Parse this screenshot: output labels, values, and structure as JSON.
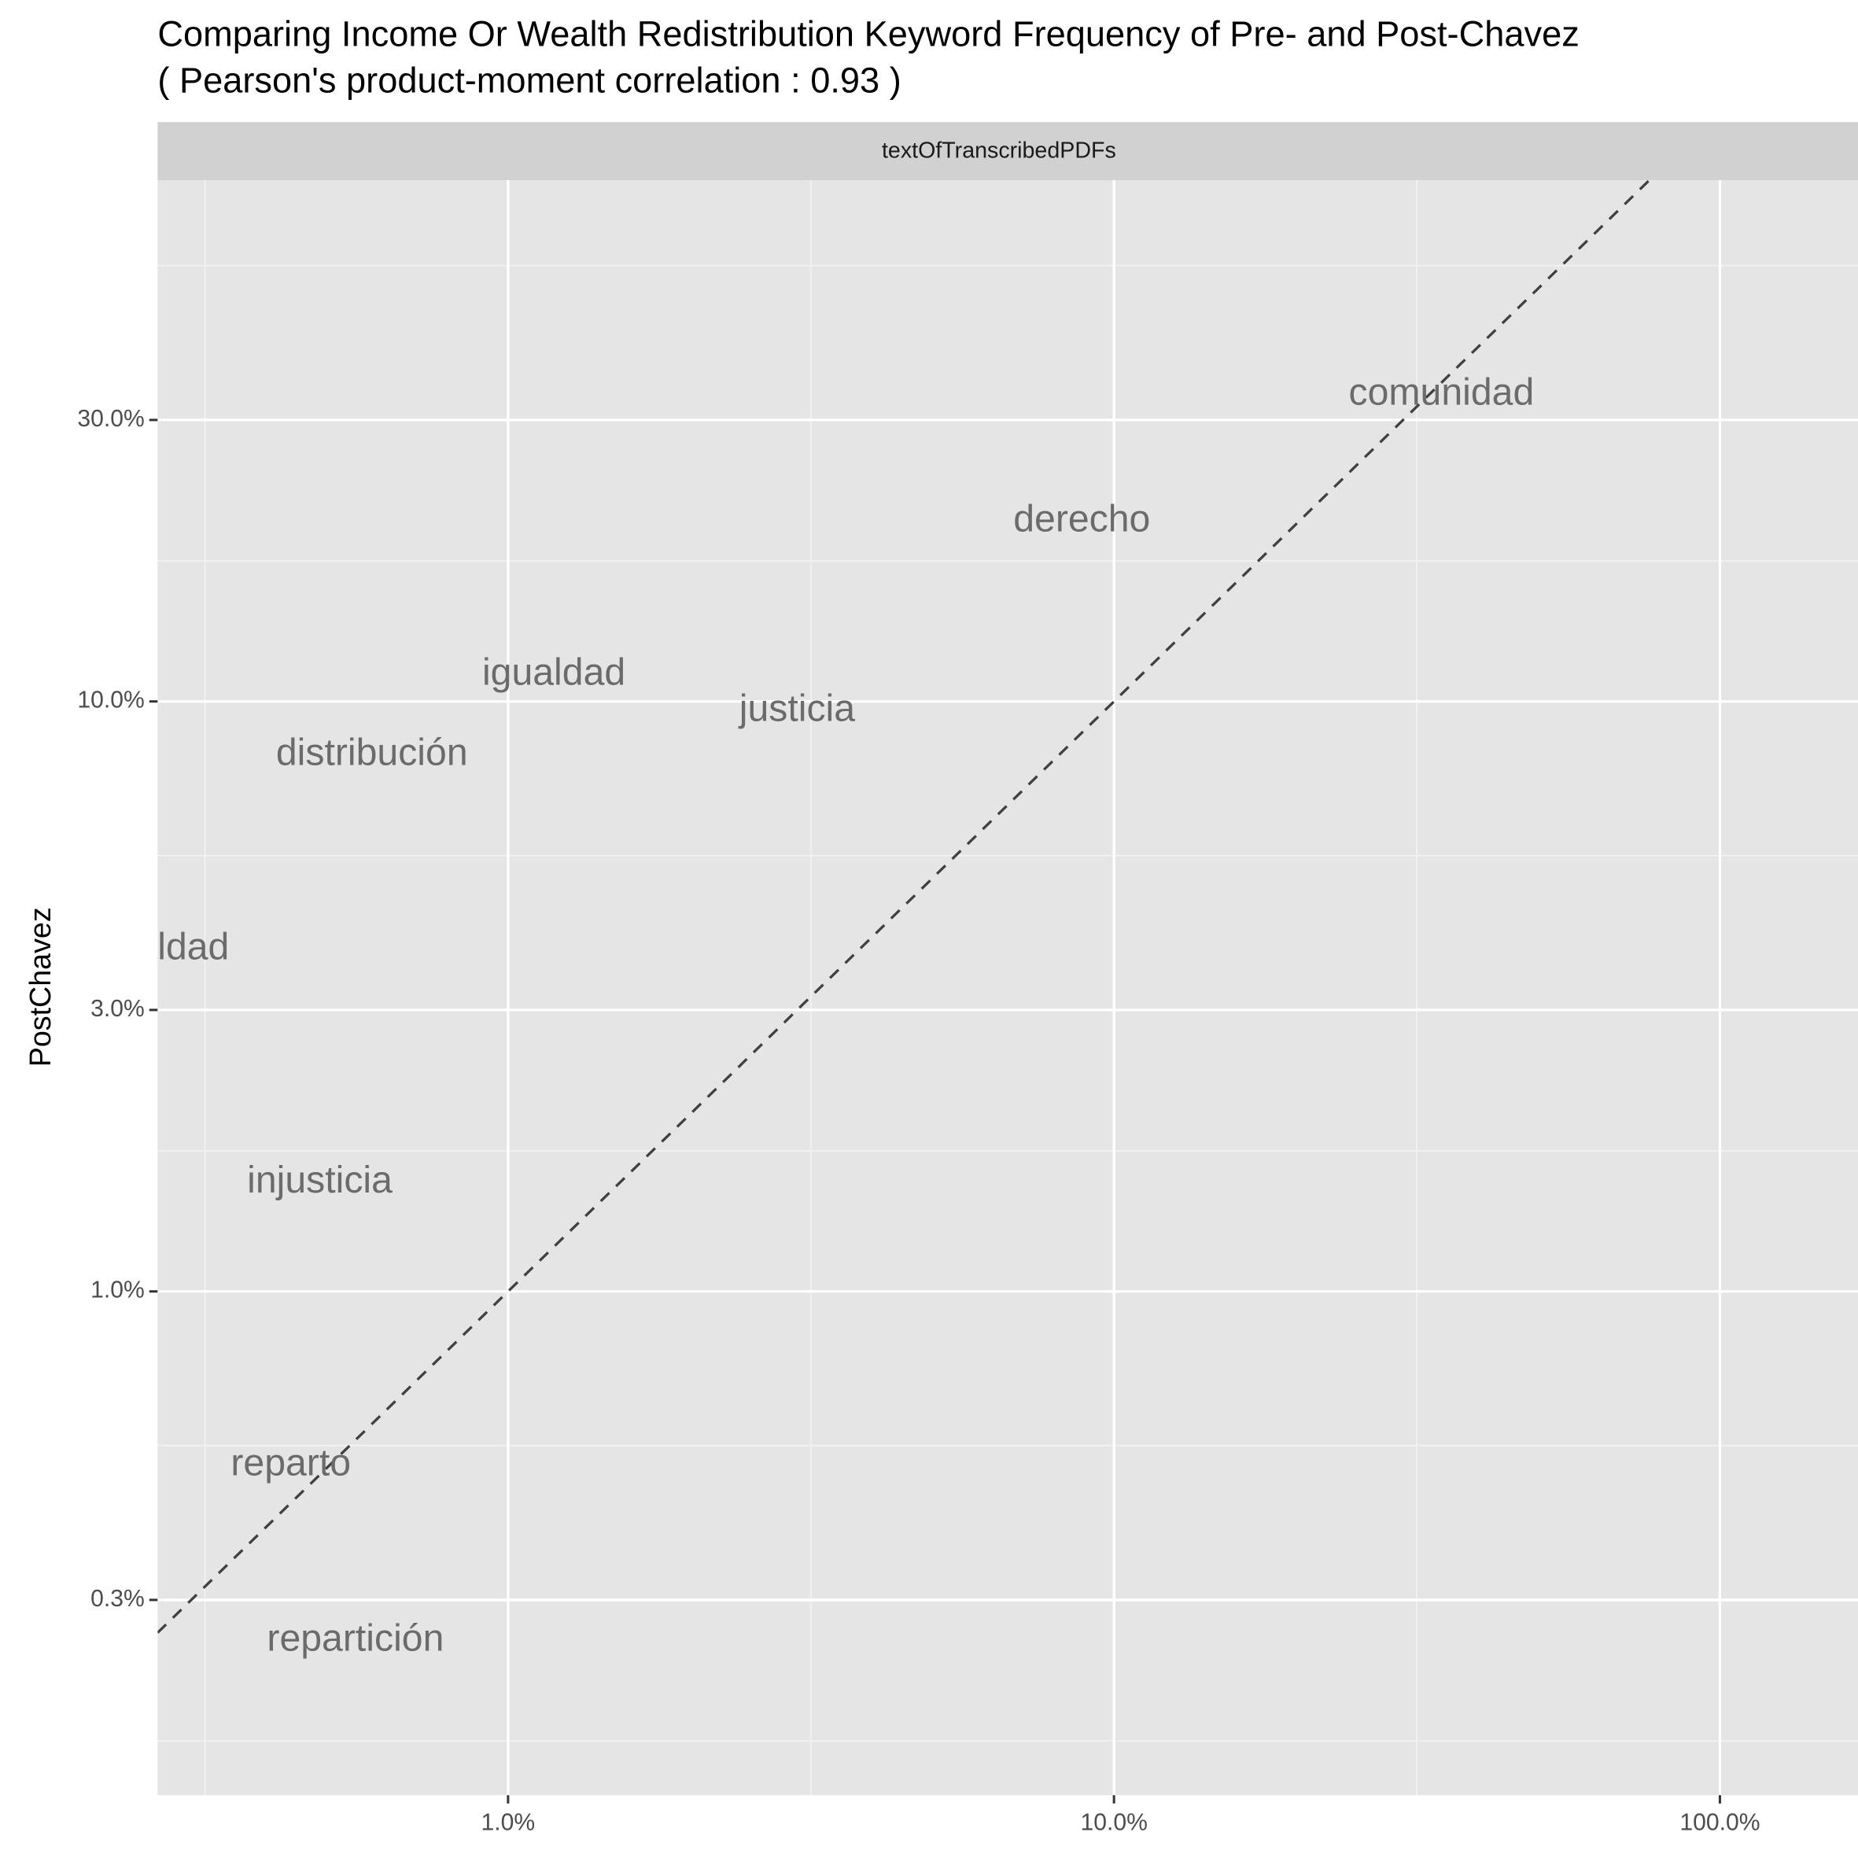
{
  "chart_data": {
    "type": "text-scatter",
    "title": "Comparing Income Or Wealth Redistribution Keyword Frequency of Pre- and Post-Chavez",
    "subtitle": "( Pearson's product-moment correlation :  0.93 )",
    "facet": "textOfTranscribedPDFs",
    "y_label": "PostChavez",
    "log_x": true,
    "log_y": true,
    "grid": true,
    "labels": [
      "comunidad",
      "derecho",
      "igualdad",
      "justicia",
      "distribución",
      "desigualdad",
      "injusticia",
      "reparto",
      "repartición"
    ],
    "x": [
      34.7,
      8.85,
      1.19,
      3.0,
      0.596,
      0.235,
      0.489,
      0.438,
      0.56
    ],
    "values": [
      33.1,
      20.2,
      11.1,
      9.64,
      8.12,
      3.8,
      1.53,
      0.507,
      0.256
    ],
    "color": "#6b6b6b",
    "reference_line_color": "#404040",
    "xlim": [
      0.264,
      169
    ],
    "ylim": [
      0.14,
      76.5
    ],
    "xticks": [
      {
        "value": 1,
        "label": "1.0%"
      },
      {
        "value": 10,
        "label": "10.0%"
      },
      {
        "value": 100,
        "label": "100.0%"
      }
    ],
    "yticks": [
      {
        "value": 0.3,
        "label": "0.3%"
      },
      {
        "value": 1,
        "label": "1.0%"
      },
      {
        "value": 3,
        "label": "3.0%"
      },
      {
        "value": 10,
        "label": "10.0%"
      },
      {
        "value": 30,
        "label": "30.0%"
      }
    ],
    "xminor": [
      0.316,
      3.16,
      31.6
    ],
    "yminor": [
      0.173,
      0.548,
      1.73,
      5.48,
      17.3,
      54.8
    ]
  }
}
